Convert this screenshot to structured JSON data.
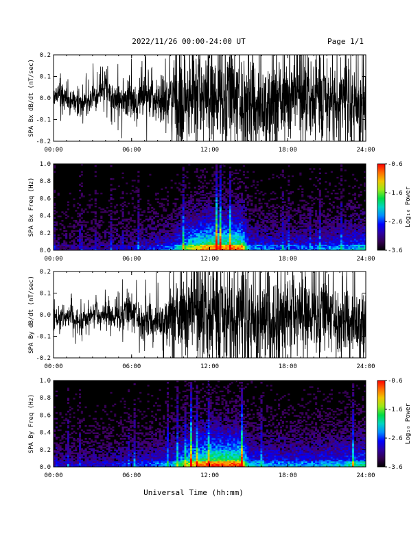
{
  "header": {
    "title": "2022/11/26  00:00-24:00 UT",
    "page": "Page 1/1"
  },
  "footer": {
    "xlabel": "Universal Time (hh:mm)"
  },
  "chart_data": [
    {
      "type": "line",
      "ylabel": "SPA Bx dB/dt (nT/sec)",
      "x_ticks": [
        "00:00",
        "06:00",
        "12:00",
        "18:00",
        "24:00"
      ],
      "xlim_hours": [
        0,
        24
      ],
      "y_ticks": [
        "0.2",
        "0.1",
        "0.0",
        "-0.1",
        "-0.2"
      ],
      "ylim": [
        -0.2,
        0.2
      ],
      "amplitude_envelope": {
        "hours": [
          0,
          2,
          4,
          5.5,
          6,
          7,
          8,
          9,
          9.5,
          10,
          12,
          15,
          18,
          20,
          22,
          23,
          24
        ],
        "amplitude": [
          0.05,
          0.06,
          0.07,
          0.09,
          0.1,
          0.09,
          0.1,
          0.14,
          0.19,
          0.22,
          0.22,
          0.22,
          0.21,
          0.18,
          0.16,
          0.19,
          0.2
        ]
      }
    },
    {
      "type": "heatmap",
      "ylabel": "SPA Bx Freq (Hz)",
      "x_ticks": [
        "00:00",
        "06:00",
        "12:00",
        "18:00",
        "24:00"
      ],
      "y_ticks": [
        "1.0",
        "0.8",
        "0.6",
        "0.4",
        "0.2",
        "0.0"
      ],
      "ylim": [
        0,
        1.0
      ],
      "colorbar": {
        "label": "Log₁₀ Power",
        "ticks": [
          "-0.6",
          "-1.6",
          "-2.6",
          "-3.6"
        ],
        "range": [
          -3.6,
          -0.6
        ]
      },
      "activity_envelope": {
        "hours": [
          0,
          3,
          6,
          9,
          10.5,
          12,
          14.5,
          15,
          17,
          20,
          22,
          24
        ],
        "level": [
          0.15,
          0.15,
          0.2,
          0.3,
          0.6,
          0.75,
          0.75,
          0.35,
          0.3,
          0.3,
          0.35,
          0.4
        ]
      }
    },
    {
      "type": "line",
      "ylabel": "SPA By dB/dt (nT/sec)",
      "x_ticks": [
        "00:00",
        "06:00",
        "12:00",
        "18:00",
        "24:00"
      ],
      "xlim_hours": [
        0,
        24
      ],
      "y_ticks": [
        "0.2",
        "0.1",
        "0.0",
        "-0.1",
        "-0.2"
      ],
      "ylim": [
        -0.2,
        0.2
      ],
      "amplitude_envelope": {
        "hours": [
          0,
          2,
          4,
          5.5,
          6,
          7,
          8,
          9,
          9.5,
          10,
          12,
          15,
          18,
          20,
          22,
          23,
          24
        ],
        "amplitude": [
          0.04,
          0.05,
          0.06,
          0.07,
          0.08,
          0.08,
          0.09,
          0.12,
          0.19,
          0.22,
          0.22,
          0.22,
          0.21,
          0.17,
          0.14,
          0.17,
          0.18
        ]
      }
    },
    {
      "type": "heatmap",
      "ylabel": "SPA By Freq (Hz)",
      "x_ticks": [
        "00:00",
        "06:00",
        "12:00",
        "18:00",
        "24:00"
      ],
      "y_ticks": [
        "1.0",
        "0.8",
        "0.6",
        "0.4",
        "0.2",
        "0.0"
      ],
      "ylim": [
        0,
        1.0
      ],
      "colorbar": {
        "label": "Log₁₀ Power",
        "ticks": [
          "-0.6",
          "-1.6",
          "-2.6",
          "-3.6"
        ],
        "range": [
          -3.6,
          -0.6
        ]
      },
      "activity_envelope": {
        "hours": [
          0,
          3,
          6,
          9,
          10.5,
          12,
          14.5,
          15,
          17,
          20,
          22,
          24
        ],
        "level": [
          0.2,
          0.2,
          0.25,
          0.35,
          0.65,
          0.8,
          0.8,
          0.4,
          0.35,
          0.35,
          0.4,
          0.45
        ]
      }
    }
  ]
}
